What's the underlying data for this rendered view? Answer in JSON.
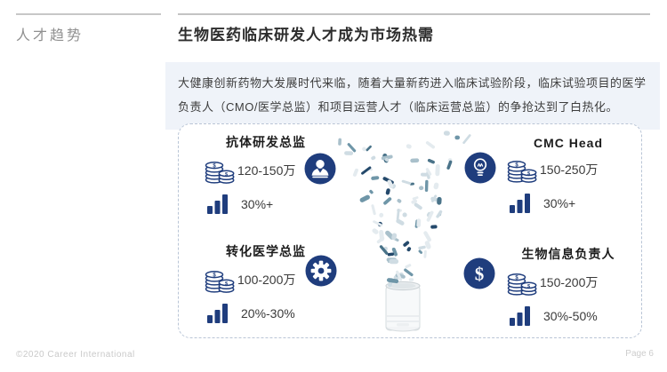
{
  "slide": {
    "section_label": "人才趋势",
    "title": "生物医药临床研发人才成为市场热需",
    "intro": "大健康创新药物大发展时代来临，随着大量新药进入临床试验阶段，临床试验项目的医学负责人（CMO/医学总监）和项目运营人才（临床运营总监）的争抢达到了白热化。",
    "footer": {
      "copyright": "©2020 Career  International",
      "page": "Page 6"
    }
  },
  "roles": [
    {
      "title": "抗体研发总监",
      "salary": "120-150万",
      "growth": "30%+",
      "badge_icon": "person-icon",
      "salary_icon": "coins-icon",
      "growth_icon": "bar-chart-icon"
    },
    {
      "title": "CMC Head",
      "salary": "150-250万",
      "growth": "30%+",
      "badge_icon": "lightbulb-icon",
      "salary_icon": "coins-icon",
      "growth_icon": "bar-chart-icon"
    },
    {
      "title": "转化医学总监",
      "salary": "100-200万",
      "growth": "20%-30%",
      "badge_icon": "gear-icon",
      "salary_icon": "coins-icon",
      "growth_icon": "bar-chart-icon"
    },
    {
      "title": "生物信息负责人",
      "salary": "150-200万",
      "growth": "30%-50%",
      "badge_icon": "dollar-icon",
      "salary_icon": "coins-icon",
      "growth_icon": "bar-chart-icon"
    }
  ],
  "colors": {
    "accent_navy": "#1f3d7d",
    "panel_border": "#b9c5d6",
    "intro_bg": "#eff3f9",
    "rule_gray": "#c7c7c7",
    "footer_gray": "#c9c9c9",
    "pill_light": "#e4ebef",
    "pill_teal": "#6f96a8",
    "pill_dark": "#24496b"
  }
}
